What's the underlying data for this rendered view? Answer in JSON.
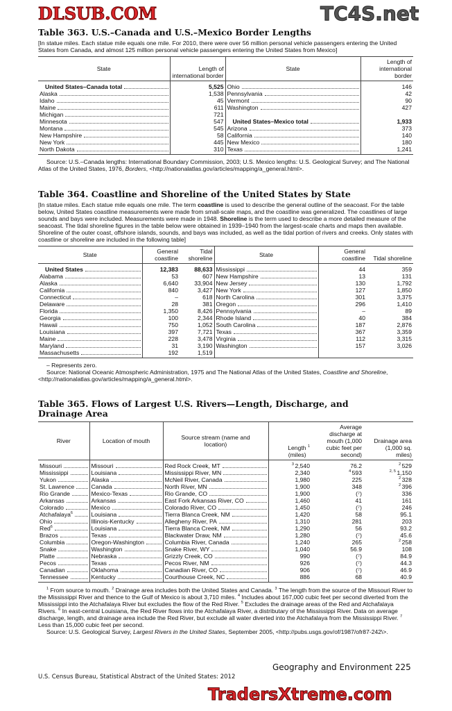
{
  "watermarks": {
    "top": "TC4S.net",
    "middle": "DLSUB.COM",
    "bottom": "TradersXtreme.com"
  },
  "t363": {
    "title": "Table 363. U.S.–Canada and U.S.–Mexico Border Lengths",
    "note": "[In statue miles. Each statue mile equals one mile. For 2010, there were over 56 million personal vehicle passengers entering the United States from Canada, and almost 125 million personal vehicle passengers entering the United States from Mexico]",
    "headers": [
      "State",
      "Length of international border",
      "State",
      "Length of international border"
    ],
    "left": [
      [
        "United States–Canada total",
        "5,525",
        true
      ],
      [
        "Alaska",
        "1,538"
      ],
      [
        "Idaho",
        "45"
      ],
      [
        "Maine",
        "611"
      ],
      [
        "Michigan",
        "721"
      ],
      [
        "Minnesota",
        "547"
      ],
      [
        "Montana",
        "545"
      ],
      [
        "New Hampshire",
        "58"
      ],
      [
        "New York",
        "445"
      ],
      [
        "North Dakota",
        "310"
      ]
    ],
    "right": [
      [
        "Ohio",
        "146"
      ],
      [
        "Pennsylvania",
        "42"
      ],
      [
        "Vermont",
        "90"
      ],
      [
        "Washington",
        "427"
      ],
      [
        "",
        ""
      ],
      [
        "United States–Mexico total",
        "1,933",
        true
      ],
      [
        "Arizona",
        "373"
      ],
      [
        "California",
        "140"
      ],
      [
        "New Mexico",
        "180"
      ],
      [
        "Texas",
        "1,241"
      ]
    ],
    "source": "Source: U.S.–Canada lengths: International Boundary Commission, 2003; U.S. Mexico lengths: U.S. Geological Survey; and The National Atlas of the United States, 1976, ",
    "source_italic": "Borders",
    "source_end": ", <http://nationalatlas.gov/articles/mapping/a_general.html>."
  },
  "t364": {
    "title": "Table 364. Coastline and Shoreline of the United States by State",
    "note_parts": [
      "[In statue miles. Each statue mile equals one mile. The term ",
      "coastline",
      " is used to describe the general outline of the seacoast. For the table below, United States coastline measurements were made from small-scale maps, and the coastline was generalized. The coastlines of large sounds and bays were included. Measurements were made in 1948. ",
      "Shoreline",
      " is the term used to describe a more detailed measure of the seacoast. The tidal shoreline figures in the table below were obtained in 1939–1940 from the largest-scale charts and maps then available. Shoreline of the outer coast, offshore islands, sounds, and bays was included, as well as the tidal portion of rivers and creeks. Only states with coastline or shoreline are included in the following table]"
    ],
    "headers": [
      "State",
      "General coastline",
      "Tidal shoreline",
      "State",
      "General coastline",
      "Tidal shoreline"
    ],
    "left": [
      [
        "United States",
        "12,383",
        "88,633",
        true
      ],
      [
        "Alabama",
        "53",
        "607"
      ],
      [
        "Alaska",
        "6,640",
        "33,904"
      ],
      [
        "California",
        "840",
        "3,427"
      ],
      [
        "Connecticut",
        "–",
        "618"
      ],
      [
        "Delaware",
        "28",
        "381"
      ],
      [
        "Florida",
        "1,350",
        "8,426"
      ],
      [
        "Georgia",
        "100",
        "2,344"
      ],
      [
        "Hawaii",
        "750",
        "1,052"
      ],
      [
        "Louisiana",
        "397",
        "7,721"
      ],
      [
        "Maine",
        "228",
        "3,478"
      ],
      [
        "Maryland",
        "31",
        "3,190"
      ],
      [
        "Massachusetts",
        "192",
        "1,519"
      ]
    ],
    "right": [
      [
        "Mississippi",
        "44",
        "359"
      ],
      [
        "New Hampshire",
        "13",
        "131"
      ],
      [
        "New Jersey",
        "130",
        "1,792"
      ],
      [
        "New York",
        "127",
        "1,850"
      ],
      [
        "North Carolina",
        "301",
        "3,375"
      ],
      [
        "Oregon",
        "296",
        "1,410"
      ],
      [
        "Pennsylvania",
        "–",
        "89"
      ],
      [
        "Rhode Island",
        "40",
        "384"
      ],
      [
        "South Carolina",
        "187",
        "2,876"
      ],
      [
        "Texas",
        "367",
        "3,359"
      ],
      [
        "Virginia",
        "112",
        "3,315"
      ],
      [
        "Washington",
        "157",
        "3,026"
      ],
      [
        "",
        "",
        ""
      ]
    ],
    "zero_note": "– Represents zero.",
    "source": "Source: National Oceanic Atmospheric Administration, 1975 and The National Atlas of the United States, ",
    "source_italic": "Coastline and Shoreline",
    "source_end": ", <http://nationalatlas.gov/articles/mapping/a_general.html>."
  },
  "t365": {
    "title": "Table 365. Flows of Largest U.S. Rivers—Length, Discharge, and Drainage Area",
    "headers": [
      "River",
      "Location of mouth",
      "Source stream (name and location)",
      "Length (miles)",
      "Average discharge at mouth (1,000 cubic feet per second)",
      "Drainage area (1,000 sq. miles)"
    ],
    "length_header_note": "1",
    "rows": [
      [
        "Missouri",
        "",
        "Missouri",
        "Red Rock Creek, MT",
        "3",
        "2,540",
        "",
        "76.2",
        "2",
        "529"
      ],
      [
        "Mississippi",
        "",
        "Louisiana",
        "Mississippi River, MN",
        "",
        "2,340",
        "4",
        "593",
        "2, 5",
        "1,150"
      ],
      [
        "Yukon",
        "",
        "Alaska",
        "McNeil River, Canada",
        "",
        "1,980",
        "",
        "225",
        "2",
        "328"
      ],
      [
        "St. Lawrence",
        "",
        "Canada",
        "North River, MN",
        "",
        "1,900",
        "",
        "348",
        "2",
        "396"
      ],
      [
        "Rio Grande",
        "",
        "Mexico-Texas",
        "Rio Grande, CO",
        "",
        "1,900",
        "",
        "(⁷)",
        "",
        "336"
      ],
      [
        "Arkansas",
        "",
        "Arkansas",
        "East Fork Arkansas River, CO",
        "",
        "1,460",
        "",
        "41",
        "",
        "161"
      ],
      [
        "Colorado",
        "",
        "Mexico",
        "Colorado River, CO",
        "",
        "1,450",
        "",
        "(⁷)",
        "",
        "246"
      ],
      [
        "Atchafalaya",
        "6",
        "Louisiana",
        "Tierra Blanca Creek, NM",
        "",
        "1,420",
        "",
        "58",
        "",
        "95.1"
      ],
      [
        "Ohio",
        "",
        "Illinois-Kentucky",
        "Allegheny River, PA",
        "",
        "1,310",
        "",
        "281",
        "",
        "203"
      ],
      [
        "Red",
        "6",
        "Louisiana",
        "Tierra Blanca Creek, NM",
        "",
        "1,290",
        "",
        "56",
        "",
        "93.2"
      ],
      [
        "Brazos",
        "",
        "Texas",
        "Blackwater Draw, NM",
        "",
        "1,280",
        "",
        "(⁷)",
        "",
        "45.6"
      ],
      [
        "Columbia",
        "",
        "Oregon-Washington",
        "Columbia River, Canada",
        "",
        "1,240",
        "",
        "265",
        "2",
        "258"
      ],
      [
        "Snake",
        "",
        "Washington",
        "Snake River, WY",
        "",
        "1,040",
        "",
        "56.9",
        "",
        "108"
      ],
      [
        "Platte",
        "",
        "Nebraska",
        "Grizzly Creek, CO",
        "",
        "990",
        "",
        "(⁷)",
        "",
        "84.9"
      ],
      [
        "Pecos",
        "",
        "Texas",
        "Pecos River, NM",
        "",
        "926",
        "",
        "(⁷)",
        "",
        "44.3"
      ],
      [
        "Canadian",
        "",
        "Oklahoma",
        "Canadian River, CO",
        "",
        "906",
        "",
        "(⁷)",
        "",
        "46.9"
      ],
      [
        "Tennessee",
        "",
        "Kentucky",
        "Courthouse Creek, NC",
        "",
        "886",
        "",
        "68",
        "",
        "40.9"
      ]
    ],
    "footnotes": [
      [
        "1",
        " From source to mouth. "
      ],
      [
        "2",
        " Drainage area includes both the United States and Canada. "
      ],
      [
        "3",
        " The length from the source of the Missouri River to the Mississippi River and thence to the Gulf of Mexico is about 3,710 miles. "
      ],
      [
        "4",
        " Includes about 167,000 cubic feet per second diverted from the Mississippi into the Atchafalaya River but excludes the flow of the Red River. "
      ],
      [
        "5",
        " Excludes the drainage areas of the Red and Atchafalaya Rivers. "
      ],
      [
        "6",
        " In east-central Louisiana, the Red River flows into the Atchafalaya River, a distributary of the Mississippi River. Data on average discharge, length, and drainage area include the Red River, but exclude all water diverted into the Atchafalaya from the Mississippi River. "
      ],
      [
        "7",
        " Less than 15,000 cubic feet per second."
      ]
    ],
    "source": "Source: U.S. Geological Survey, ",
    "source_italic": "Largest Rivers in the United States",
    "source_end": ", September 2005, <http://pubs.usgs.gov/of/1987/ofr87-242\\>."
  },
  "footer": {
    "section": "Geography and Environment  225",
    "publisher": "U.S. Census Bureau, Statistical Abstract of the United States: 2012"
  }
}
